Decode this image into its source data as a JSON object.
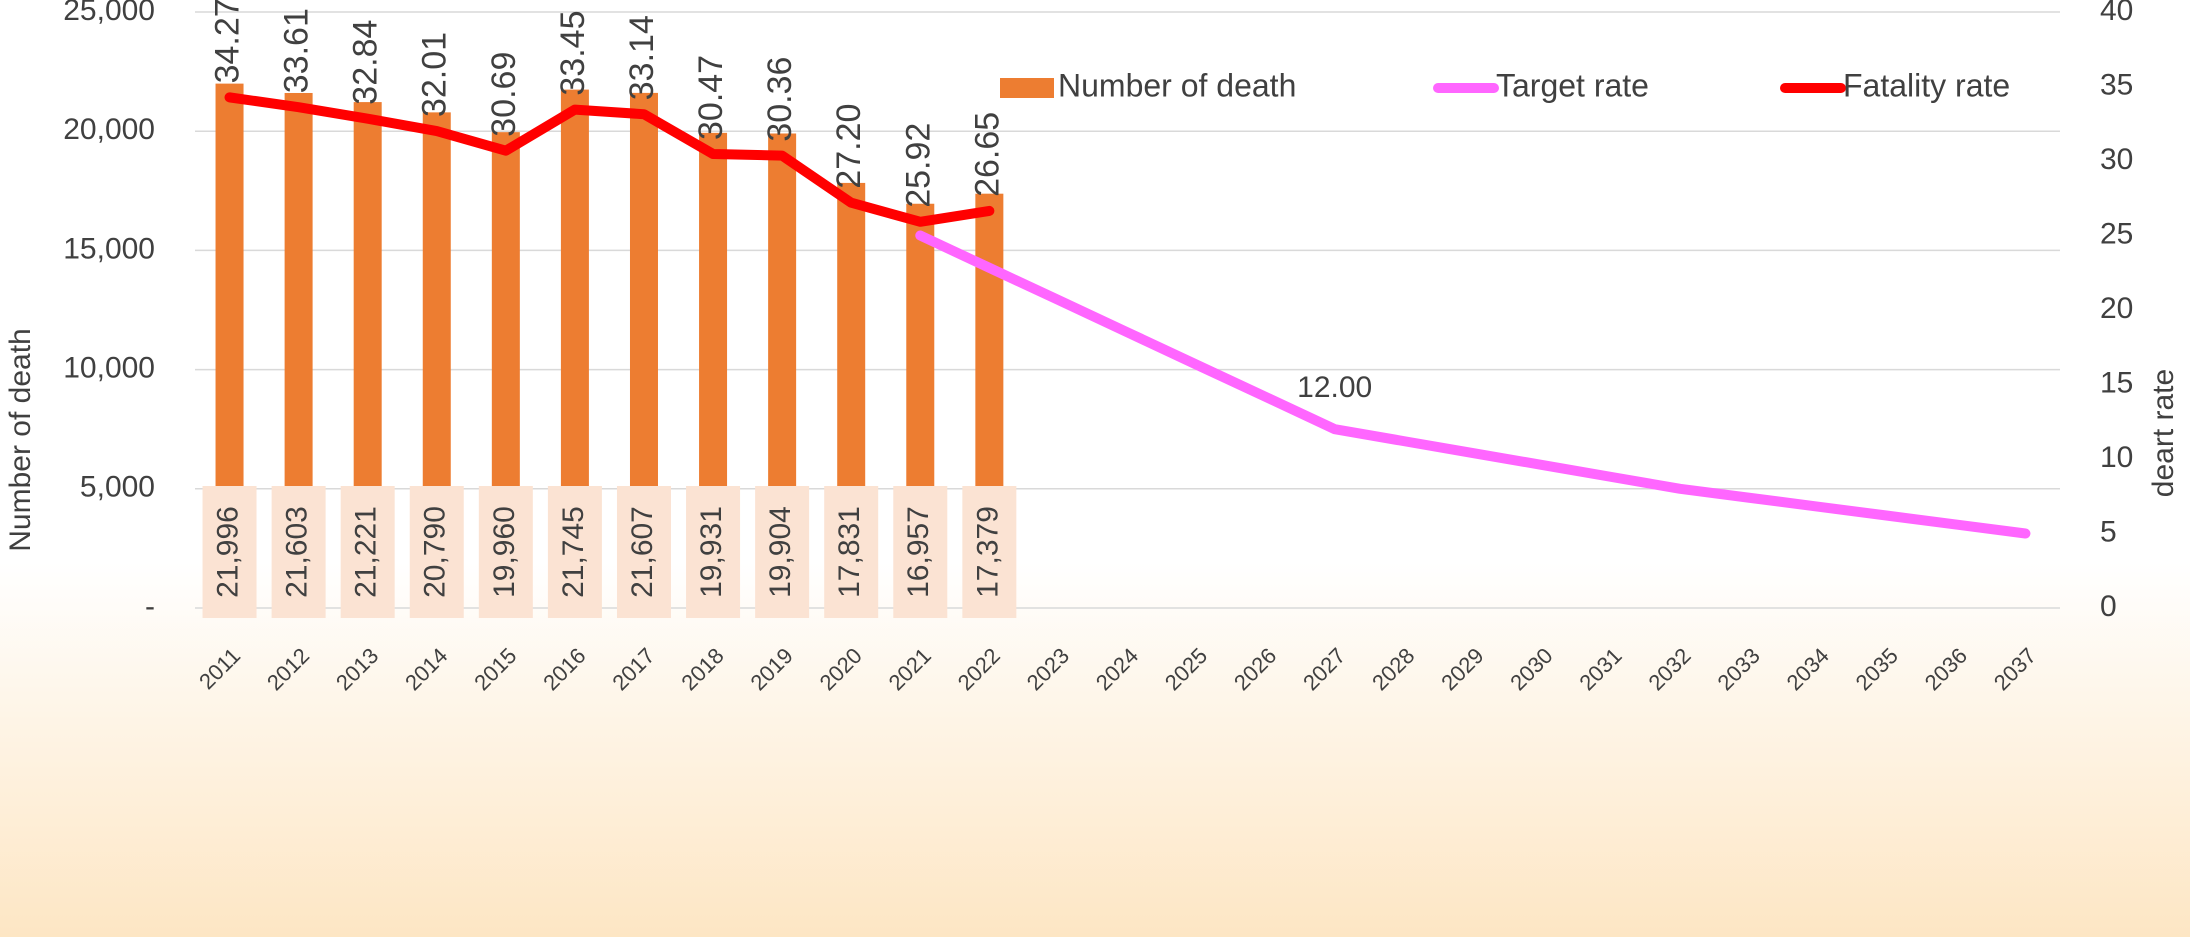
{
  "chart_data": {
    "type": "bar",
    "y_axis_label": "Number of death",
    "y2_axis_label": "deart rate",
    "categories": [
      "2011",
      "2012",
      "2013",
      "2014",
      "2015",
      "2016",
      "2017",
      "2018",
      "2019",
      "2020",
      "2021",
      "2022",
      "2023",
      "2024",
      "2025",
      "2026",
      "2027",
      "2028",
      "2029",
      "2030",
      "2031",
      "2032",
      "2033",
      "2034",
      "2035",
      "2036",
      "2037"
    ],
    "series": [
      {
        "name": "Number of death",
        "type": "bar",
        "color": "#ed7d31",
        "values": [
          21996,
          21603,
          21221,
          20790,
          19960,
          21745,
          21607,
          19931,
          19904,
          17831,
          16957,
          17379,
          null,
          null,
          null,
          null,
          null,
          null,
          null,
          null,
          null,
          null,
          null,
          null,
          null,
          null,
          null
        ],
        "value_labels": [
          "21,996",
          "21,603",
          "21,221",
          "20,790",
          "19,960",
          "21,745",
          "21,607",
          "19,931",
          "19,904",
          "17,831",
          "16,957",
          "17,379",
          null,
          null,
          null,
          null,
          null,
          null,
          null,
          null,
          null,
          null,
          null,
          null,
          null,
          null,
          null
        ]
      },
      {
        "name": "Target rate",
        "type": "line",
        "axis": "y2",
        "color": "#ff66ff",
        "values": [
          null,
          null,
          null,
          null,
          null,
          null,
          null,
          null,
          null,
          null,
          25,
          22.83,
          20.67,
          18.5,
          16.33,
          14.17,
          12,
          11.2,
          10.4,
          9.6,
          8.8,
          8,
          7.4,
          6.8,
          6.2,
          5.6,
          5
        ],
        "value_labels": [
          null,
          null,
          null,
          null,
          null,
          null,
          null,
          null,
          null,
          null,
          null,
          null,
          null,
          null,
          null,
          null,
          "12.00",
          null,
          null,
          null,
          null,
          null,
          null,
          null,
          null,
          null,
          null
        ]
      },
      {
        "name": "Fatality rate",
        "type": "line",
        "axis": "y2",
        "color": "#ff0000",
        "values": [
          34.27,
          33.61,
          32.84,
          32.01,
          30.69,
          33.45,
          33.14,
          30.47,
          30.36,
          27.2,
          25.92,
          26.65,
          null,
          null,
          null,
          null,
          null,
          null,
          null,
          null,
          null,
          null,
          null,
          null,
          null,
          null,
          null
        ],
        "value_labels": [
          "34.27",
          "33.61",
          "32.84",
          "32.01",
          "30.69",
          "33.45",
          "33.14",
          "30.47",
          "30.36",
          "27.20",
          "25.92",
          "26.65",
          null,
          null,
          null,
          null,
          null,
          null,
          null,
          null,
          null,
          null,
          null,
          null,
          null,
          null,
          null
        ]
      }
    ],
    "ylim": [
      0,
      25000
    ],
    "yticks": [
      {
        "value": 0,
        "label": "-"
      },
      {
        "value": 5000,
        "label": "5,000"
      },
      {
        "value": 10000,
        "label": "10,000"
      },
      {
        "value": 15000,
        "label": "15,000"
      },
      {
        "value": 20000,
        "label": "20,000"
      },
      {
        "value": 25000,
        "label": "25,000"
      }
    ],
    "y2lim": [
      0,
      40
    ],
    "y2ticks": [
      0,
      5,
      10,
      15,
      20,
      25,
      30,
      35,
      40
    ],
    "grid": true,
    "legend": "top"
  }
}
